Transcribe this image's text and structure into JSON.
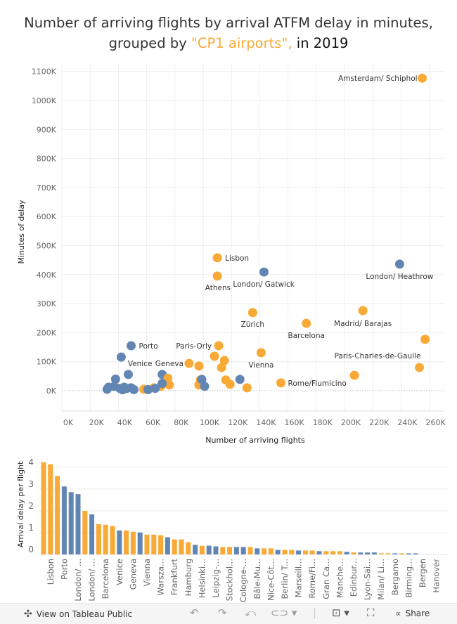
{
  "title": {
    "line1": "Number of arriving flights by arrival ATFM delay in minutes,",
    "line2_prefix": "grouped by ",
    "line2_highlight": "\"CP1 airports\",",
    "line2_suffix": " in 2019"
  },
  "colors": {
    "cp1": "#f9a935",
    "other": "#6286b4"
  },
  "chart_data": [
    {
      "type": "scatter",
      "xlabel": "Number of arriving flights",
      "ylabel": "Minutes of delay",
      "xlim": [
        0,
        270000
      ],
      "ylim": [
        0,
        1100000
      ],
      "xticks": [
        "0K",
        "20K",
        "40K",
        "60K",
        "80K",
        "100K",
        "120K",
        "140K",
        "160K",
        "180K",
        "200K",
        "220K",
        "240K",
        "260K"
      ],
      "yticks": [
        "0K",
        "100K",
        "200K",
        "300K",
        "400K",
        "500K",
        "600K",
        "700K",
        "800K",
        "900K",
        "1000K",
        "1100K"
      ],
      "grid": true,
      "points": [
        {
          "name": "Amsterdam/ Schiphol",
          "x": 255000,
          "y": 1077000,
          "group": "cp1"
        },
        {
          "name": "London/ Heathrow",
          "x": 239000,
          "y": 436000,
          "group": "other"
        },
        {
          "name": "Lisbon",
          "x": 110000,
          "y": 458000,
          "group": "cp1"
        },
        {
          "name": "Athens",
          "x": 110000,
          "y": 395000,
          "group": "cp1"
        },
        {
          "name": "London/ Gatwick",
          "x": 143000,
          "y": 409000,
          "group": "other"
        },
        {
          "name": "Zürich",
          "x": 135000,
          "y": 269000,
          "group": "cp1"
        },
        {
          "name": "Barcelona",
          "x": 173000,
          "y": 232000,
          "group": "cp1"
        },
        {
          "name": "Madrid/ Barajas",
          "x": 213000,
          "y": 276000,
          "group": "cp1"
        },
        {
          "name": "",
          "x": 257000,
          "y": 177000,
          "group": "cp1"
        },
        {
          "name": "Paris-Charles-de-Gaulle",
          "x": 253000,
          "y": 80000,
          "group": "cp1"
        },
        {
          "name": "",
          "x": 207000,
          "y": 53000,
          "group": "cp1"
        },
        {
          "name": "Paris-Orly",
          "x": 111000,
          "y": 155000,
          "group": "cp1"
        },
        {
          "name": "Vienna",
          "x": 141000,
          "y": 131000,
          "group": "cp1"
        },
        {
          "name": "Rome/Fiumicino",
          "x": 155000,
          "y": 27000,
          "group": "cp1"
        },
        {
          "name": "Porto",
          "x": 49000,
          "y": 155000,
          "group": "other"
        },
        {
          "name": "",
          "x": 42000,
          "y": 116000,
          "group": "other"
        },
        {
          "name": "Venice",
          "x": 47000,
          "y": 56000,
          "group": "other"
        },
        {
          "name": "Geneva",
          "x": 71000,
          "y": 56000,
          "group": "other"
        },
        {
          "name": "",
          "x": 90000,
          "y": 94000,
          "group": "cp1"
        },
        {
          "name": "",
          "x": 97000,
          "y": 85000,
          "group": "cp1"
        },
        {
          "name": "",
          "x": 108000,
          "y": 119000,
          "group": "cp1"
        },
        {
          "name": "",
          "x": 115000,
          "y": 104000,
          "group": "cp1"
        },
        {
          "name": "",
          "x": 113000,
          "y": 80000,
          "group": "cp1"
        },
        {
          "name": "",
          "x": 116000,
          "y": 37000,
          "group": "cp1"
        },
        {
          "name": "",
          "x": 119000,
          "y": 22000,
          "group": "cp1"
        },
        {
          "name": "",
          "x": 131000,
          "y": 10000,
          "group": "cp1"
        },
        {
          "name": "",
          "x": 98000,
          "y": 37000,
          "group": "cp1"
        },
        {
          "name": "",
          "x": 97000,
          "y": 20000,
          "group": "cp1"
        },
        {
          "name": "",
          "x": 75000,
          "y": 43000,
          "group": "cp1"
        },
        {
          "name": "",
          "x": 76000,
          "y": 20000,
          "group": "cp1"
        },
        {
          "name": "",
          "x": 70000,
          "y": 15000,
          "group": "cp1"
        },
        {
          "name": "",
          "x": 58000,
          "y": 5000,
          "group": "cp1"
        },
        {
          "name": "",
          "x": 65000,
          "y": 10000,
          "group": "cp1"
        },
        {
          "name": "",
          "x": 126000,
          "y": 39000,
          "group": "other"
        },
        {
          "name": "",
          "x": 99000,
          "y": 39000,
          "group": "other"
        },
        {
          "name": "",
          "x": 101000,
          "y": 15000,
          "group": "other"
        },
        {
          "name": "",
          "x": 71000,
          "y": 25000,
          "group": "other"
        },
        {
          "name": "",
          "x": 38000,
          "y": 40000,
          "group": "other"
        },
        {
          "name": "",
          "x": 32000,
          "y": 5000,
          "group": "other"
        },
        {
          "name": "",
          "x": 33000,
          "y": 12000,
          "group": "other"
        },
        {
          "name": "",
          "x": 37000,
          "y": 15000,
          "group": "other"
        },
        {
          "name": "",
          "x": 41000,
          "y": 8000,
          "group": "other"
        },
        {
          "name": "",
          "x": 43000,
          "y": 3000,
          "group": "other"
        },
        {
          "name": "",
          "x": 46000,
          "y": 8000,
          "group": "other"
        },
        {
          "name": "",
          "x": 49000,
          "y": 10000,
          "group": "other"
        },
        {
          "name": "",
          "x": 51000,
          "y": 4000,
          "group": "other"
        },
        {
          "name": "",
          "x": 61000,
          "y": 4000,
          "group": "other"
        },
        {
          "name": "",
          "x": 66000,
          "y": 8000,
          "group": "other"
        },
        {
          "name": "",
          "x": 44000,
          "y": 12000,
          "group": "other"
        }
      ]
    },
    {
      "type": "bar",
      "ylabel": "Arrival delay per flight",
      "ylim": [
        0,
        4.5
      ],
      "yticks": [
        "0",
        "1",
        "2",
        "3",
        "4"
      ],
      "grid": true,
      "categories": [
        "",
        "Lisbon",
        "",
        "Porto",
        "",
        "London/ ...",
        "",
        "London/ ...",
        "",
        "Barcelona",
        "",
        "Venice",
        "",
        "Geneva",
        "",
        "Vienna",
        "",
        "Warsza...",
        "",
        "Frankfurt",
        "",
        "Hamburg",
        "",
        "Helsinki...",
        "",
        "Leipzig-...",
        "",
        "Stockhol...",
        "",
        "Cologne-...",
        "",
        "Bâle-Mu...",
        "",
        "Nice-Côt...",
        "",
        "Berlin/ T...",
        "",
        "Marseill...",
        "",
        "Rome/Fi...",
        "",
        "Gran Ca...",
        "",
        "Manche...",
        "",
        "Edinbur...",
        "",
        "Lyon-Sai...",
        "",
        "Milan/ Li...",
        "",
        "Bergamo",
        "",
        "Birming...",
        "",
        "Bergen",
        "",
        "Hanover"
      ],
      "values": [
        4.23,
        4.14,
        3.6,
        3.12,
        2.86,
        2.77,
        2.0,
        1.84,
        1.39,
        1.36,
        1.3,
        1.1,
        1.1,
        1.04,
        1.01,
        0.91,
        0.91,
        0.88,
        0.79,
        0.69,
        0.69,
        0.56,
        0.44,
        0.4,
        0.4,
        0.37,
        0.34,
        0.34,
        0.34,
        0.34,
        0.34,
        0.28,
        0.28,
        0.28,
        0.21,
        0.21,
        0.21,
        0.18,
        0.18,
        0.18,
        0.15,
        0.15,
        0.15,
        0.15,
        0.12,
        0.09,
        0.09,
        0.09,
        0.09,
        0.05,
        0.05,
        0.05,
        0.05,
        0.05,
        0.05,
        0,
        0,
        0
      ],
      "groups": [
        "cp1",
        "cp1",
        "cp1",
        "other",
        "other",
        "other",
        "cp1",
        "other",
        "cp1",
        "cp1",
        "cp1",
        "other",
        "cp1",
        "cp1",
        "other",
        "cp1",
        "cp1",
        "cp1",
        "other",
        "cp1",
        "cp1",
        "cp1",
        "other",
        "cp1",
        "other",
        "other",
        "cp1",
        "cp1",
        "other",
        "other",
        "cp1",
        "other",
        "cp1",
        "cp1",
        "other",
        "cp1",
        "cp1",
        "other",
        "cp1",
        "cp1",
        "other",
        "cp1",
        "cp1",
        "cp1",
        "other",
        "cp1",
        "other",
        "other",
        "other",
        "cp1",
        "cp1",
        "other",
        "cp1",
        "other",
        "other",
        "other",
        "other",
        "other"
      ]
    }
  ],
  "footer": {
    "view_label": "View on Tableau Public",
    "share_label": "Share",
    "icons": [
      "tableau-logo-icon",
      "undo-icon",
      "redo-icon",
      "revert-icon",
      "refresh-icon",
      "download-icon",
      "fullscreen-icon",
      "share-icon"
    ]
  }
}
